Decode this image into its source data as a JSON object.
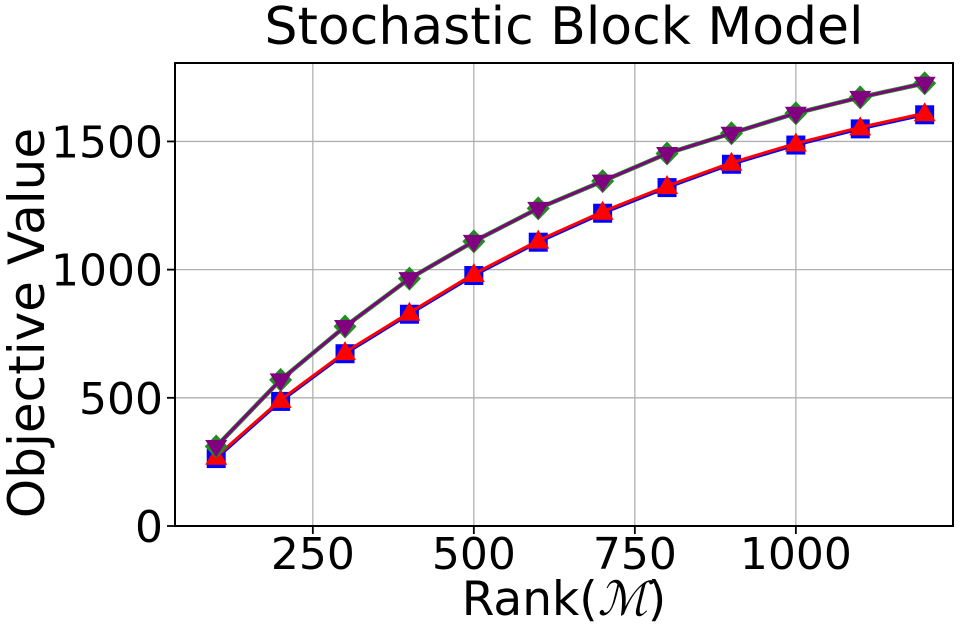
{
  "chart_data": {
    "type": "line",
    "title": "Stochastic Block Model",
    "xlabel": "Rank(ℳ)",
    "xlabel_parts": {
      "prefix": "Rank(",
      "symbol": "ℳ",
      "suffix": ")"
    },
    "ylabel": "Objective Value",
    "xlim": [
      36,
      1244
    ],
    "ylim": [
      0,
      1806
    ],
    "x_ticks": [
      250,
      500,
      750,
      1000
    ],
    "y_ticks": [
      0,
      500,
      1000,
      1500
    ],
    "grid": true,
    "grid_color": "#b0b0b0",
    "legend": "none",
    "background_color": "#ffffff",
    "x": [
      100,
      200,
      300,
      400,
      500,
      600,
      700,
      800,
      900,
      1000,
      1100,
      1200
    ],
    "series": [
      {
        "name": "blue-square",
        "marker": "square",
        "color": "#0000ff",
        "values": [
          263,
          486,
          672,
          826,
          977,
          1107,
          1220,
          1320,
          1411,
          1486,
          1549,
          1604
        ]
      },
      {
        "name": "red-triangle-up",
        "marker": "triangle-up",
        "color": "#ff0000",
        "values": [
          270,
          492,
          678,
          832,
          983,
          1113,
          1226,
          1326,
          1417,
          1492,
          1555,
          1610
        ]
      },
      {
        "name": "green-diamond",
        "marker": "diamond",
        "color": "#228b22",
        "values": [
          310,
          570,
          778,
          965,
          1110,
          1239,
          1345,
          1453,
          1532,
          1610,
          1672,
          1727
        ]
      },
      {
        "name": "purple-triangle-down",
        "marker": "triangle-down",
        "color": "#800080",
        "values": [
          310,
          570,
          778,
          965,
          1110,
          1239,
          1345,
          1453,
          1532,
          1610,
          1672,
          1727
        ]
      }
    ]
  }
}
